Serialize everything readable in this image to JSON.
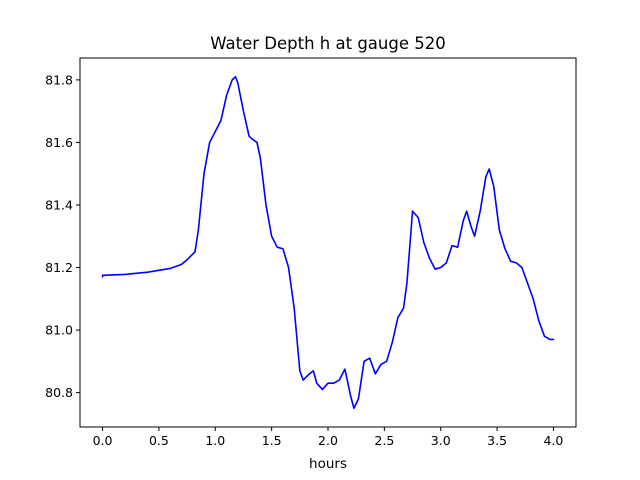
{
  "chart_data": {
    "type": "line",
    "title": "Water Depth h at gauge 520",
    "xlabel": "hours",
    "ylabel": "",
    "xlim": [
      -0.2,
      4.2
    ],
    "ylim": [
      80.69,
      81.87
    ],
    "xticks": [
      0.0,
      0.5,
      1.0,
      1.5,
      2.0,
      2.5,
      3.0,
      3.5,
      4.0
    ],
    "xtick_labels": [
      "0.0",
      "0.5",
      "1.0",
      "1.5",
      "2.0",
      "2.5",
      "3.0",
      "3.5",
      "4.0"
    ],
    "yticks": [
      80.8,
      81.0,
      81.2,
      81.4,
      81.6,
      81.8
    ],
    "ytick_labels": [
      "80.8",
      "81.0",
      "81.2",
      "81.4",
      "81.6",
      "81.8"
    ],
    "grid": false,
    "legend": "none",
    "series": [
      {
        "color": "#0000ff",
        "x": [
          0.0,
          0.0,
          0.2,
          0.4,
          0.6,
          0.7,
          0.75,
          0.82,
          0.85,
          0.9,
          0.95,
          1.0,
          1.05,
          1.1,
          1.15,
          1.18,
          1.2,
          1.25,
          1.3,
          1.33,
          1.37,
          1.4,
          1.45,
          1.5,
          1.55,
          1.6,
          1.65,
          1.7,
          1.75,
          1.78,
          1.82,
          1.87,
          1.9,
          1.95,
          2.0,
          2.05,
          2.1,
          2.15,
          2.2,
          2.23,
          2.27,
          2.32,
          2.37,
          2.42,
          2.47,
          2.52,
          2.57,
          2.62,
          2.67,
          2.7,
          2.75,
          2.8,
          2.85,
          2.9,
          2.95,
          3.0,
          3.05,
          3.1,
          3.15,
          3.2,
          3.23,
          3.27,
          3.3,
          3.35,
          3.4,
          3.43,
          3.47,
          3.52,
          3.57,
          3.62,
          3.67,
          3.72,
          3.77,
          3.82,
          3.87,
          3.92,
          3.97,
          4.0
        ],
        "y": [
          81.17,
          81.175,
          81.178,
          81.185,
          81.197,
          81.21,
          81.225,
          81.25,
          81.32,
          81.5,
          81.6,
          81.635,
          81.67,
          81.75,
          81.8,
          81.81,
          81.79,
          81.7,
          81.62,
          81.61,
          81.6,
          81.55,
          81.4,
          81.3,
          81.265,
          81.26,
          81.2,
          81.07,
          80.87,
          80.84,
          80.855,
          80.87,
          80.83,
          80.81,
          80.83,
          80.83,
          80.84,
          80.875,
          80.79,
          80.75,
          80.78,
          80.9,
          80.91,
          80.86,
          80.89,
          80.9,
          80.96,
          81.04,
          81.07,
          81.15,
          81.38,
          81.36,
          81.28,
          81.23,
          81.195,
          81.2,
          81.215,
          81.27,
          81.265,
          81.35,
          81.38,
          81.33,
          81.3,
          81.38,
          81.49,
          81.515,
          81.46,
          81.32,
          81.26,
          81.22,
          81.215,
          81.2,
          81.15,
          81.1,
          81.03,
          80.98,
          80.97,
          80.97
        ]
      }
    ]
  }
}
